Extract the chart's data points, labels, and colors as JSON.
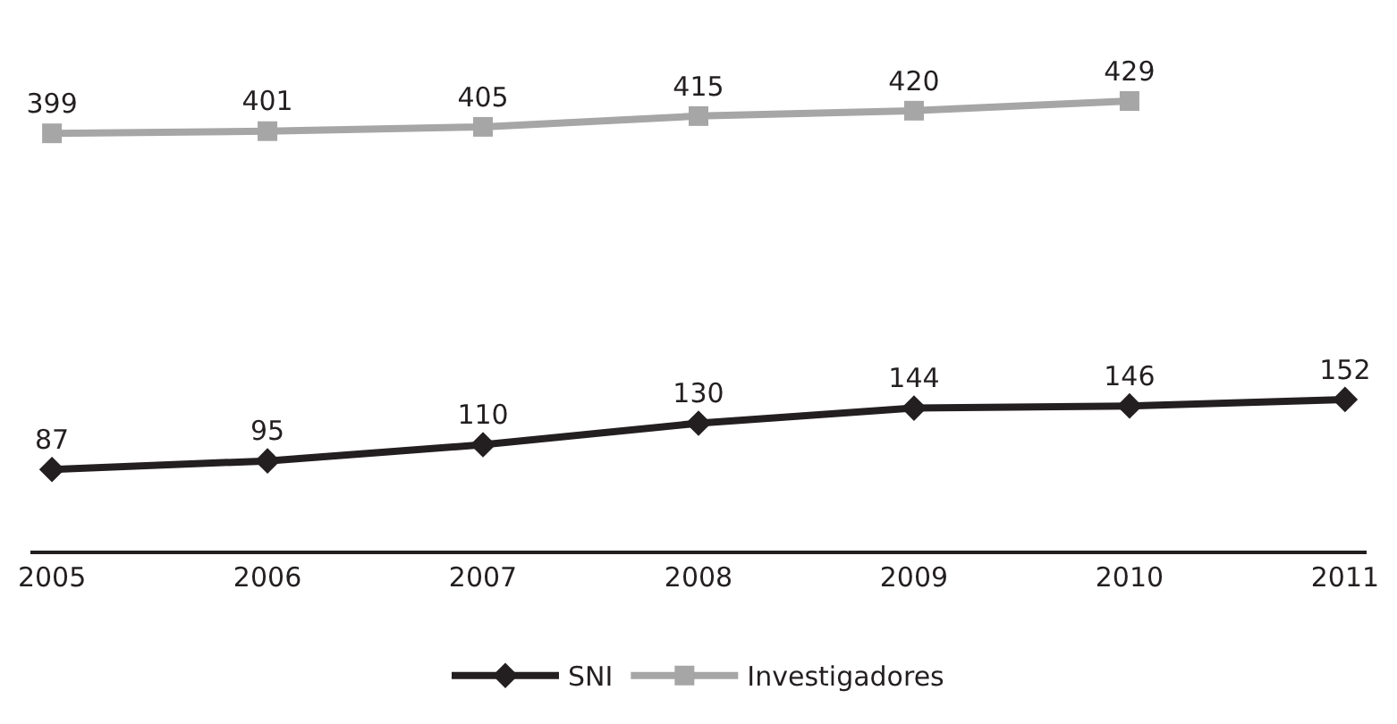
{
  "chart_data": {
    "type": "line",
    "categories": [
      "2005",
      "2006",
      "2007",
      "2008",
      "2009",
      "2010",
      "2011"
    ],
    "series": [
      {
        "name": "SNI",
        "color": "#231f20",
        "marker": "diamond",
        "values": [
          87,
          95,
          110,
          130,
          144,
          146,
          152
        ]
      },
      {
        "name": "Investigadores",
        "color": "#a6a6a6",
        "marker": "square",
        "values": [
          399,
          401,
          405,
          415,
          420,
          429,
          null
        ]
      }
    ],
    "data_labels": true,
    "tick_labels": "x",
    "legend": "bottom",
    "line_style": "solid"
  }
}
